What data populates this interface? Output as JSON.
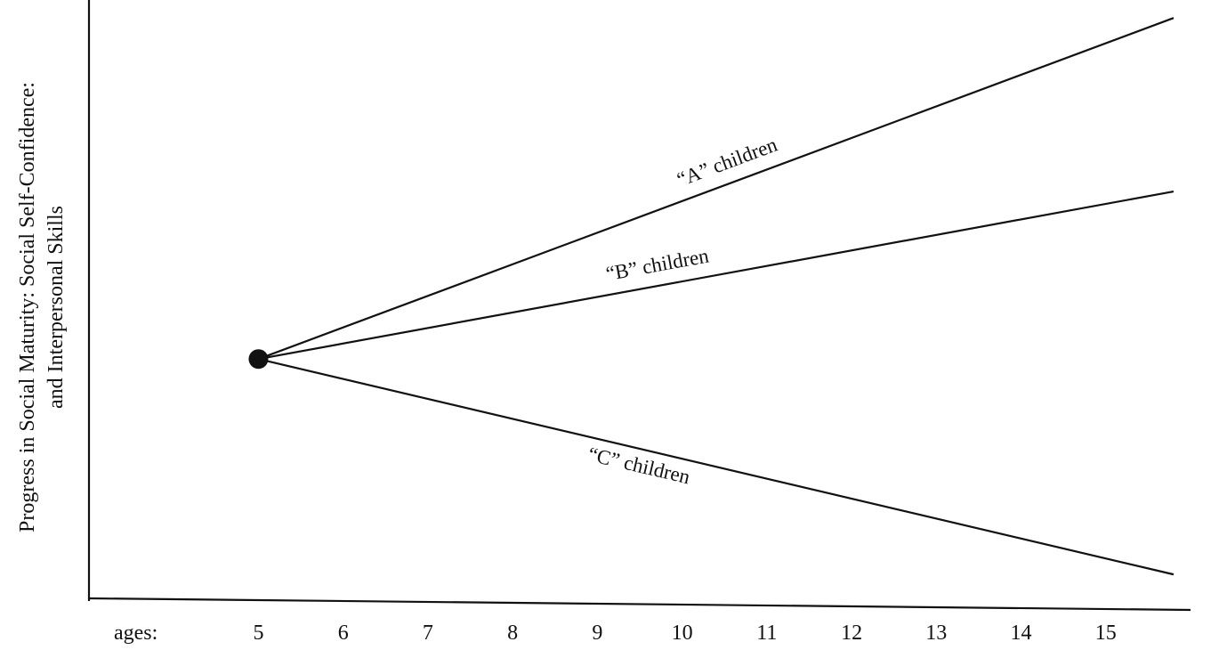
{
  "chart_data": {
    "type": "line",
    "title": "",
    "xlabel": "",
    "x_axis_prefix": "ages:",
    "ylabel_lines": [
      "Progress in Social Maturity: Social Self-Confidence:",
      "and Interpersonal Skills"
    ],
    "x": [
      "5",
      "6",
      "7",
      "8",
      "9",
      "10",
      "11",
      "12",
      "13",
      "14",
      "15"
    ],
    "xlim": [
      3.0,
      16.0
    ],
    "ylim": [
      0,
      100
    ],
    "grid": false,
    "legend": "none",
    "start_point": {
      "x": 5,
      "y": 40
    },
    "series": [
      {
        "name": "“A” children",
        "points": [
          [
            5,
            40
          ],
          [
            15.8,
            97
          ]
        ]
      },
      {
        "name": "“B” children",
        "points": [
          [
            5,
            40
          ],
          [
            15.8,
            68
          ]
        ]
      },
      {
        "name": "“C” children",
        "points": [
          [
            5,
            40
          ],
          [
            15.8,
            4
          ]
        ]
      }
    ]
  }
}
